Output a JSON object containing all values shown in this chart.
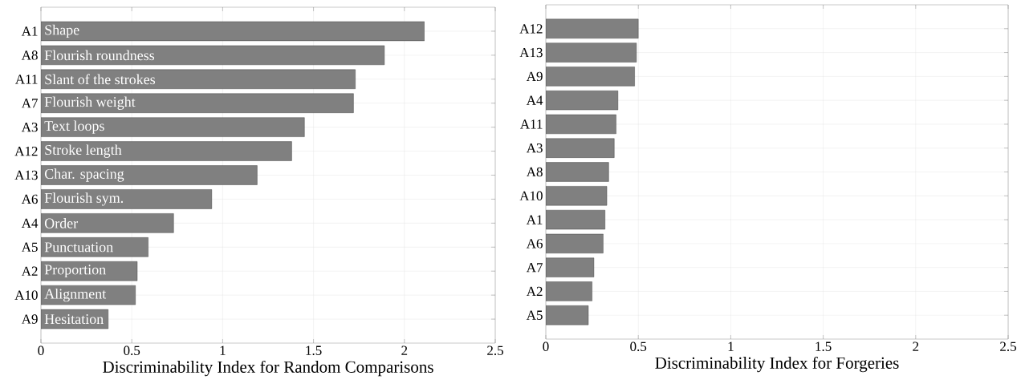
{
  "chart_data": [
    {
      "type": "bar",
      "orientation": "horizontal",
      "categories": [
        "A1",
        "A8",
        "A11",
        "A7",
        "A3",
        "A12",
        "A13",
        "A6",
        "A4",
        "A5",
        "A2",
        "A10",
        "A9"
      ],
      "values": [
        2.11,
        1.89,
        1.73,
        1.72,
        1.45,
        1.38,
        1.19,
        0.94,
        0.73,
        0.59,
        0.53,
        0.52,
        0.37
      ],
      "color": "#808080",
      "xlabel": "Discriminability Index for Random Comparisons",
      "xlim": [
        0,
        2.5
      ],
      "xticks": [
        0,
        0.5,
        1,
        1.5,
        2,
        2.5
      ],
      "grid": true,
      "annotations": [
        "Shape",
        "Flourish roundness",
        "Slant of the strokes",
        "Flourish weight",
        "Text loops",
        "Stroke length",
        "Char. spacing",
        "Flourish sym.",
        "Order",
        "Punctuation",
        "Proportion",
        "Alignment",
        "Hesitation"
      ]
    },
    {
      "type": "bar",
      "orientation": "horizontal",
      "categories": [
        "A12",
        "A13",
        "A9",
        "A4",
        "A11",
        "A3",
        "A8",
        "A10",
        "A1",
        "A6",
        "A7",
        "A2",
        "A5"
      ],
      "values": [
        0.5,
        0.49,
        0.48,
        0.39,
        0.38,
        0.37,
        0.34,
        0.33,
        0.32,
        0.31,
        0.26,
        0.25,
        0.23
      ],
      "color": "#808080",
      "xlabel": "Discriminability Index for Forgeries",
      "xlim": [
        0,
        2.5
      ],
      "xticks": [
        0,
        0.5,
        1,
        1.5,
        2,
        2.5
      ],
      "grid": true
    }
  ]
}
